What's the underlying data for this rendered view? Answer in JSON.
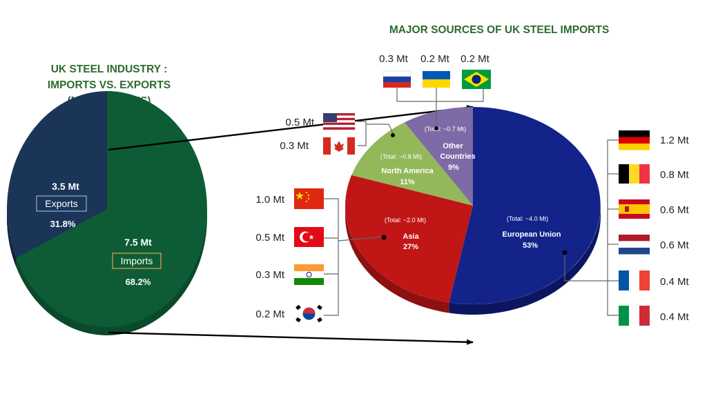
{
  "titles": {
    "left": [
      "UK STEEL INDUSTRY :",
      "IMPORTS VS. EXPORTS",
      "(MILLION TONS)"
    ],
    "right": "MAJOR SOURCES OF UK STEEL IMPORTS"
  },
  "colors": {
    "title_green": "#2e6b2e",
    "exports": "#1a3558",
    "imports": "#0d5c36",
    "eu": "#13238a",
    "asia": "#c01616",
    "north_america": "#93b85a",
    "other": "#7d6aa6",
    "connector": "#000000",
    "bracket": "#666666"
  },
  "chart_data": [
    {
      "type": "pie",
      "title": "UK STEEL INDUSTRY : IMPORTS VS. EXPORTS (MILLION TONS)",
      "slices": [
        {
          "name": "Exports",
          "value": 3.5,
          "value_label": "3.5 Mt",
          "pct_label": "31.8%",
          "color": "#1a3558"
        },
        {
          "name": "Imports",
          "value": 7.5,
          "value_label": "7.5 Mt",
          "pct_label": "68.2%",
          "color": "#0d5c36"
        }
      ]
    },
    {
      "type": "pie",
      "title": "MAJOR SOURCES OF UK STEEL IMPORTS",
      "slices": [
        {
          "name": "European Union",
          "value": 53,
          "total_label": "(Total: ~4.0 Mt)",
          "pct_label": "53%",
          "color": "#13238a"
        },
        {
          "name": "Asia",
          "value": 27,
          "total_label": "(Total: ~2.0 Mt)",
          "pct_label": "27%",
          "color": "#c01616"
        },
        {
          "name": "North America",
          "value": 11,
          "total_label": "(Total: ~0.8 Mt)",
          "pct_label": "11%",
          "color": "#93b85a"
        },
        {
          "name": "Other Countries",
          "name_lines": [
            "Other",
            "Countries"
          ],
          "value": 9,
          "total_label": "(Total: ~0.7 Mt)",
          "pct_label": "9%",
          "color": "#7d6aa6"
        }
      ]
    }
  ],
  "breakdowns": {
    "eu": [
      {
        "country": "Germany",
        "label": "1.2 Mt"
      },
      {
        "country": "Belgium",
        "label": "0.8 Mt"
      },
      {
        "country": "Spain",
        "label": "0.6 Mt"
      },
      {
        "country": "Netherlands",
        "label": "0.6 Mt"
      },
      {
        "country": "France",
        "label": "0.4 Mt"
      },
      {
        "country": "Italy",
        "label": "0.4 Mt"
      }
    ],
    "asia": [
      {
        "country": "China",
        "label": "1.0 Mt"
      },
      {
        "country": "Turkey",
        "label": "0.5 Mt"
      },
      {
        "country": "India",
        "label": "0.3 Mt"
      },
      {
        "country": "South Korea",
        "label": "0.2 Mt"
      }
    ],
    "north_america": [
      {
        "country": "United States",
        "label": "0.5 Mt"
      },
      {
        "country": "Canada",
        "label": "0.3 Mt"
      }
    ],
    "other": [
      {
        "country": "Russia",
        "label": "0.3 Mt"
      },
      {
        "country": "Ukraine",
        "label": "0.2 Mt"
      },
      {
        "country": "Brazil",
        "label": "0.2 Mt"
      }
    ]
  }
}
